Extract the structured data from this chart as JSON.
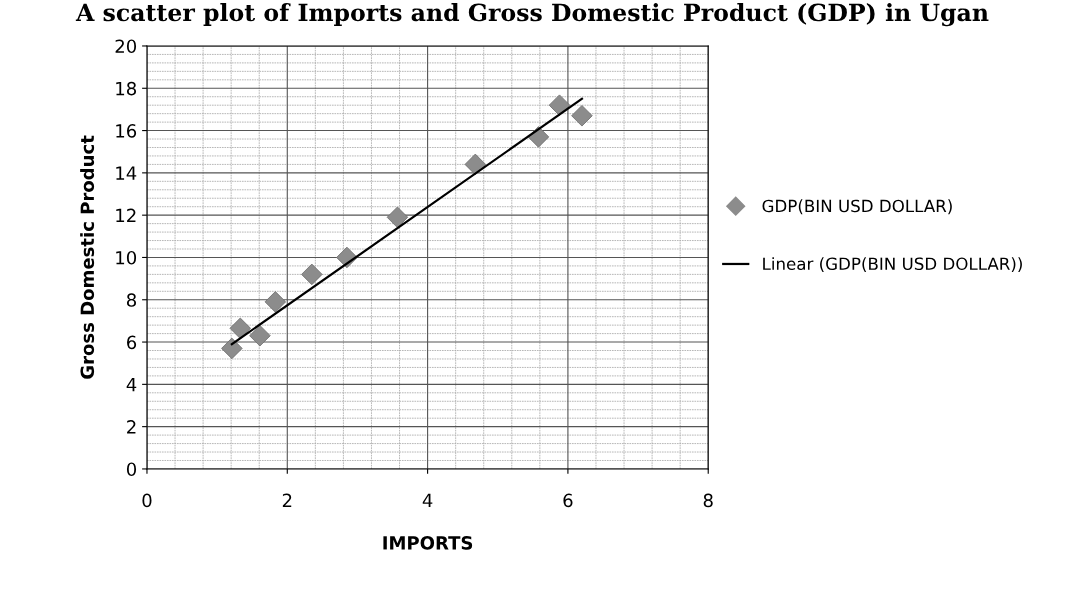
{
  "chart_data": {
    "type": "scatter",
    "title": "A scatter plot of Imports and Gross Domestic Product (GDP) in Ugan",
    "xlabel": "IMPORTS",
    "ylabel": "Gross Domestic Product",
    "series": [
      {
        "name": "GDP(BIN USD DOLLAR)",
        "marker": "diamond",
        "color": "#8c8c8c",
        "x": [
          1.21,
          1.33,
          1.42,
          1.5,
          1.61,
          1.83,
          2.35,
          2.85,
          3.57,
          4.68,
          5.58,
          5.88,
          6.2
        ],
        "values": [
          5.7,
          6.65,
          null,
          null,
          6.3,
          7.9,
          9.2,
          10.0,
          11.9,
          14.4,
          15.7,
          17.2,
          16.7
        ]
      },
      {
        "name": "Linear (GDP(BIN USD DOLLAR))",
        "type": "line",
        "marker": "none",
        "color": "#000000",
        "x": [
          1.21,
          6.2
        ],
        "values": [
          5.9,
          17.5
        ]
      }
    ],
    "xlim": [
      0,
      8
    ],
    "xticks": [
      0,
      2,
      4,
      6,
      8
    ],
    "ylim": [
      0,
      20
    ],
    "yticks": [
      0,
      2,
      4,
      6,
      8,
      10,
      12,
      14,
      16,
      18,
      20
    ],
    "grid": true,
    "legend": "right"
  }
}
